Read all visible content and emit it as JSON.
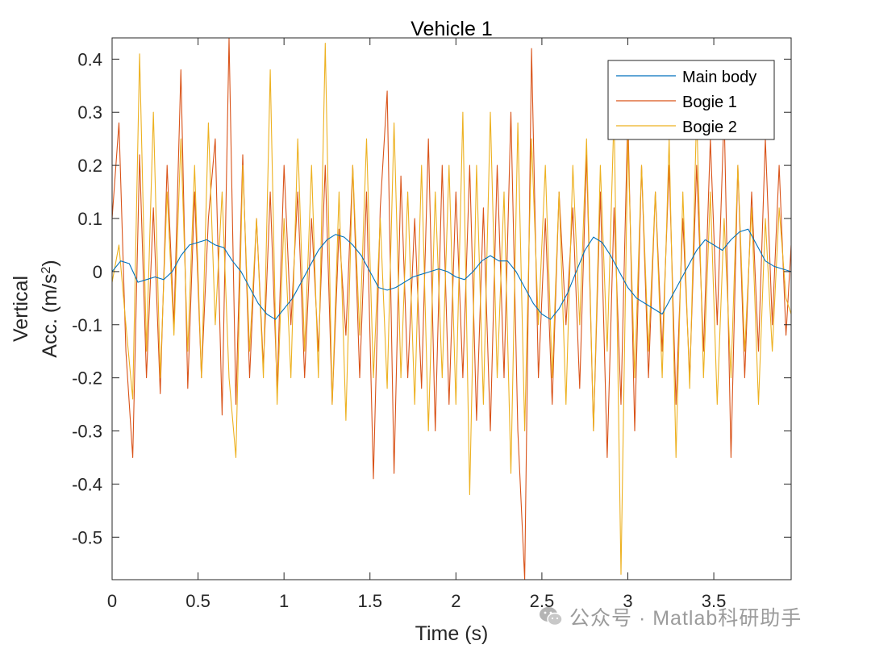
{
  "chart_data": {
    "type": "line",
    "title": "Vehicle 1",
    "xlabel": "Time (s)",
    "ylabel_line1": "Vertical",
    "ylabel_line2_prefix": "Acc. (m/s",
    "ylabel_sup": "2",
    "ylabel_line2_suffix": ")",
    "xlim": [
      0,
      3.95
    ],
    "ylim": [
      -0.58,
      0.44
    ],
    "x_ticks": [
      0,
      0.5,
      1,
      1.5,
      2,
      2.5,
      3,
      3.5
    ],
    "x_tick_labels": [
      "0",
      "0.5",
      "1",
      "1.5",
      "2",
      "2.5",
      "3",
      "3.5"
    ],
    "y_ticks": [
      0.4,
      0.3,
      0.2,
      0.1,
      0,
      -0.1,
      -0.2,
      -0.3,
      -0.4,
      -0.5
    ],
    "y_tick_labels": [
      "0.4",
      "0.3",
      "0.2",
      "0.1",
      "0",
      "-0.1",
      "-0.2",
      "-0.3",
      "-0.4",
      "-0.5"
    ],
    "grid": false,
    "legend_placement": "top-right",
    "series": [
      {
        "name": "Main body",
        "color": "#0072BD",
        "x": [
          0,
          0.05,
          0.1,
          0.15,
          0.2,
          0.25,
          0.3,
          0.35,
          0.4,
          0.45,
          0.5,
          0.55,
          0.6,
          0.65,
          0.7,
          0.75,
          0.8,
          0.85,
          0.9,
          0.95,
          1.0,
          1.05,
          1.1,
          1.15,
          1.2,
          1.25,
          1.3,
          1.35,
          1.4,
          1.45,
          1.5,
          1.55,
          1.6,
          1.65,
          1.7,
          1.75,
          1.8,
          1.85,
          1.9,
          1.95,
          2.0,
          2.05,
          2.1,
          2.15,
          2.2,
          2.25,
          2.3,
          2.35,
          2.4,
          2.45,
          2.5,
          2.55,
          2.6,
          2.65,
          2.7,
          2.75,
          2.8,
          2.85,
          2.9,
          2.95,
          3.0,
          3.05,
          3.1,
          3.15,
          3.2,
          3.25,
          3.3,
          3.35,
          3.4,
          3.45,
          3.5,
          3.55,
          3.6,
          3.65,
          3.7,
          3.75,
          3.8,
          3.85,
          3.9,
          3.95
        ],
        "y": [
          0.0,
          0.02,
          0.015,
          -0.02,
          -0.015,
          -0.01,
          -0.015,
          0.0,
          0.03,
          0.05,
          0.055,
          0.06,
          0.05,
          0.045,
          0.02,
          0.0,
          -0.03,
          -0.06,
          -0.08,
          -0.09,
          -0.07,
          -0.05,
          -0.02,
          0.01,
          0.04,
          0.06,
          0.07,
          0.065,
          0.05,
          0.03,
          0.0,
          -0.03,
          -0.035,
          -0.03,
          -0.02,
          -0.01,
          -0.005,
          0.0,
          0.005,
          0.0,
          -0.01,
          -0.015,
          0.0,
          0.02,
          0.03,
          0.02,
          0.02,
          0.0,
          -0.03,
          -0.06,
          -0.08,
          -0.09,
          -0.07,
          -0.04,
          0.0,
          0.04,
          0.065,
          0.055,
          0.03,
          0.0,
          -0.03,
          -0.05,
          -0.06,
          -0.07,
          -0.08,
          -0.05,
          -0.02,
          0.01,
          0.04,
          0.06,
          0.05,
          0.04,
          0.06,
          0.075,
          0.08,
          0.05,
          0.02,
          0.01,
          0.005,
          0.0
        ]
      },
      {
        "name": "Bogie 1",
        "color": "#D95319",
        "x": [
          0,
          0.04,
          0.08,
          0.12,
          0.16,
          0.2,
          0.24,
          0.28,
          0.32,
          0.36,
          0.4,
          0.44,
          0.48,
          0.52,
          0.56,
          0.6,
          0.64,
          0.68,
          0.72,
          0.76,
          0.8,
          0.84,
          0.88,
          0.92,
          0.96,
          1.0,
          1.04,
          1.08,
          1.12,
          1.16,
          1.2,
          1.24,
          1.28,
          1.32,
          1.36,
          1.4,
          1.44,
          1.48,
          1.52,
          1.56,
          1.6,
          1.64,
          1.68,
          1.72,
          1.76,
          1.8,
          1.84,
          1.88,
          1.92,
          1.96,
          2.0,
          2.04,
          2.08,
          2.12,
          2.16,
          2.2,
          2.24,
          2.28,
          2.32,
          2.36,
          2.4,
          2.44,
          2.48,
          2.52,
          2.56,
          2.6,
          2.64,
          2.68,
          2.72,
          2.76,
          2.8,
          2.84,
          2.88,
          2.92,
          2.96,
          3.0,
          3.04,
          3.08,
          3.12,
          3.16,
          3.2,
          3.24,
          3.28,
          3.32,
          3.36,
          3.4,
          3.44,
          3.48,
          3.52,
          3.56,
          3.6,
          3.64,
          3.68,
          3.72,
          3.76,
          3.8,
          3.84,
          3.88,
          3.92,
          3.95
        ],
        "y": [
          0.1,
          0.28,
          -0.15,
          -0.35,
          0.22,
          -0.2,
          0.12,
          -0.23,
          0.2,
          -0.1,
          0.38,
          -0.22,
          0.15,
          -0.2,
          0.1,
          0.25,
          -0.27,
          0.44,
          -0.25,
          0.22,
          -0.2,
          0.1,
          -0.18,
          0.15,
          -0.22,
          0.2,
          -0.1,
          0.15,
          -0.2,
          0.1,
          -0.15,
          0.2,
          -0.25,
          0.08,
          -0.12,
          0.2,
          -0.2,
          0.15,
          -0.39,
          0.12,
          0.34,
          -0.38,
          0.18,
          -0.2,
          0.1,
          -0.22,
          0.25,
          -0.3,
          0.2,
          -0.25,
          0.15,
          -0.2,
          0.2,
          -0.28,
          0.12,
          -0.3,
          0.2,
          -0.2,
          0.3,
          -0.3,
          -0.58,
          0.42,
          -0.2,
          0.1,
          -0.25,
          0.15,
          -0.1,
          0.12,
          -0.22,
          0.22,
          -0.3,
          0.15,
          -0.35,
          0.12,
          -0.25,
          0.3,
          -0.3,
          0.2,
          -0.2,
          0.15,
          -0.15,
          0.2,
          -0.25,
          0.1,
          -0.2,
          0.2,
          -0.15,
          0.25,
          -0.1,
          0.3,
          -0.35,
          0.2,
          -0.2,
          0.15,
          -0.15,
          0.25,
          -0.1,
          0.2,
          -0.12,
          0.05
        ]
      },
      {
        "name": "Bogie 2",
        "color": "#EDB120",
        "x": [
          0,
          0.04,
          0.08,
          0.12,
          0.16,
          0.2,
          0.24,
          0.28,
          0.32,
          0.36,
          0.4,
          0.44,
          0.48,
          0.52,
          0.56,
          0.6,
          0.64,
          0.68,
          0.72,
          0.76,
          0.8,
          0.84,
          0.88,
          0.92,
          0.96,
          1.0,
          1.04,
          1.08,
          1.12,
          1.16,
          1.2,
          1.24,
          1.28,
          1.32,
          1.36,
          1.4,
          1.44,
          1.48,
          1.52,
          1.56,
          1.6,
          1.64,
          1.68,
          1.72,
          1.76,
          1.8,
          1.84,
          1.88,
          1.92,
          1.96,
          2.0,
          2.04,
          2.08,
          2.12,
          2.16,
          2.2,
          2.24,
          2.28,
          2.32,
          2.36,
          2.4,
          2.44,
          2.48,
          2.52,
          2.56,
          2.6,
          2.64,
          2.68,
          2.72,
          2.76,
          2.8,
          2.84,
          2.88,
          2.92,
          2.96,
          3.0,
          3.04,
          3.08,
          3.12,
          3.16,
          3.2,
          3.24,
          3.28,
          3.32,
          3.36,
          3.4,
          3.44,
          3.48,
          3.52,
          3.56,
          3.6,
          3.64,
          3.68,
          3.72,
          3.76,
          3.8,
          3.84,
          3.88,
          3.92,
          3.95
        ],
        "y": [
          -0.02,
          0.05,
          -0.1,
          -0.24,
          0.41,
          -0.15,
          0.3,
          -0.2,
          0.15,
          -0.12,
          0.25,
          -0.15,
          0.2,
          -0.2,
          0.28,
          -0.1,
          0.15,
          -0.2,
          -0.35,
          0.2,
          -0.15,
          0.1,
          -0.2,
          0.38,
          -0.25,
          0.1,
          -0.2,
          0.25,
          -0.15,
          0.2,
          -0.2,
          0.43,
          -0.25,
          0.15,
          -0.28,
          0.2,
          -0.12,
          0.25,
          -0.2,
          0.1,
          -0.22,
          0.28,
          -0.2,
          0.15,
          -0.25,
          0.2,
          -0.3,
          0.15,
          -0.2,
          0.2,
          -0.25,
          0.3,
          -0.42,
          0.2,
          -0.25,
          0.3,
          -0.2,
          0.15,
          -0.38,
          0.28,
          -0.3,
          0.25,
          -0.1,
          0.2,
          -0.2,
          0.15,
          -0.25,
          0.2,
          -0.1,
          0.25,
          -0.3,
          0.2,
          -0.15,
          0.3,
          -0.57,
          0.25,
          -0.2,
          0.2,
          -0.15,
          0.15,
          -0.2,
          0.25,
          -0.35,
          0.15,
          -0.22,
          0.3,
          -0.2,
          0.15,
          -0.25,
          0.1,
          -0.2,
          0.2,
          -0.15,
          0.12,
          -0.25,
          0.1,
          -0.15,
          0.12,
          -0.05,
          -0.08
        ]
      }
    ]
  },
  "watermark": {
    "text": "公众号 · Matlab科研助手",
    "icon": "wechat-icon"
  }
}
